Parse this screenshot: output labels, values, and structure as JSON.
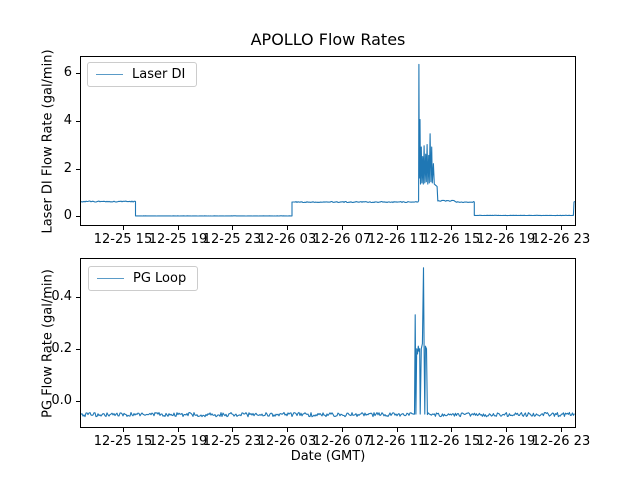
{
  "figure": {
    "title": "APOLLO Flow Rates",
    "xlabel": "Date (GMT)",
    "background": "#ffffff",
    "line_color": "#1f77b4"
  },
  "chart_data": [
    {
      "type": "line",
      "name": "laser-di",
      "title": "APOLLO Flow Rates",
      "ylabel": "Laser DI Flow Rate (gal/min)",
      "legend": "Laser DI",
      "legend_position": "upper-left",
      "color": "#1f77b4",
      "grid": false,
      "x_unit": "hours since 12-25 00:00 GMT",
      "xlim": [
        11.95,
        48.02
      ],
      "ylim": [
        -0.36,
        6.66
      ],
      "xticks": {
        "hours": [
          15,
          19,
          23,
          27,
          31,
          35,
          39,
          43,
          47
        ],
        "labels": [
          "12-25 15",
          "12-25 19",
          "12-25 23",
          "12-26 03",
          "12-26 07",
          "12-26 11",
          "12-26 15",
          "12-26 19",
          "12-26 23"
        ]
      },
      "yticks": {
        "values": [
          0,
          2,
          4,
          6
        ],
        "labels": [
          "0",
          "2",
          "4",
          "6"
        ]
      },
      "segments": [
        {
          "type": "flat",
          "x0": 11.95,
          "x1": 15.93,
          "y": 0.62,
          "noise": 0.02
        },
        {
          "type": "path",
          "points": [
            [
              15.93,
              0.62
            ],
            [
              15.93,
              0.02
            ]
          ]
        },
        {
          "type": "flat",
          "x0": 15.93,
          "x1": 27.36,
          "y": 0.02,
          "noise": 0.003
        },
        {
          "type": "path",
          "points": [
            [
              27.36,
              0.02
            ],
            [
              27.36,
              0.6
            ]
          ]
        },
        {
          "type": "flat",
          "x0": 27.36,
          "x1": 36.55,
          "y": 0.6,
          "noise": 0.02
        },
        {
          "type": "path",
          "points": [
            [
              36.55,
              0.6
            ],
            [
              36.6,
              0.65
            ],
            [
              36.62,
              6.35
            ],
            [
              36.65,
              1.6
            ],
            [
              36.7,
              4.05
            ],
            [
              36.74,
              1.35
            ],
            [
              36.8,
              2.9
            ],
            [
              36.84,
              1.4
            ],
            [
              36.9,
              2.5
            ],
            [
              36.94,
              1.35
            ],
            [
              37.0,
              2.95
            ],
            [
              37.05,
              1.4
            ],
            [
              37.12,
              2.6
            ],
            [
              37.16,
              1.45
            ],
            [
              37.22,
              3.0
            ],
            [
              37.27,
              1.35
            ],
            [
              37.34,
              2.55
            ],
            [
              37.38,
              1.4
            ],
            [
              37.44,
              3.45
            ],
            [
              37.5,
              1.45
            ],
            [
              37.56,
              2.9
            ],
            [
              37.6,
              1.4
            ],
            [
              37.68,
              2.2
            ],
            [
              37.75,
              1.35
            ],
            [
              37.85,
              1.3
            ],
            [
              37.95,
              1.25
            ],
            [
              38.0,
              0.65
            ]
          ]
        },
        {
          "type": "flat",
          "x0": 38.0,
          "x1": 39.3,
          "y": 0.65,
          "noise": 0.02
        },
        {
          "type": "flat",
          "x0": 39.3,
          "x1": 40.67,
          "y": 0.6,
          "noise": 0.02
        },
        {
          "type": "path",
          "points": [
            [
              40.67,
              0.6
            ],
            [
              40.67,
              0.04
            ]
          ]
        },
        {
          "type": "flat",
          "x0": 40.67,
          "x1": 47.9,
          "y": 0.04,
          "noise": 0.006
        },
        {
          "type": "path",
          "points": [
            [
              47.9,
              0.04
            ],
            [
              47.95,
              0.6
            ],
            [
              48.02,
              0.62
            ]
          ]
        }
      ]
    },
    {
      "type": "line",
      "name": "pg-loop",
      "ylabel": "PG Flow Rate (gal/min)",
      "xlabel": "Date (GMT)",
      "legend": "PG Loop",
      "legend_position": "upper-left",
      "color": "#1f77b4",
      "grid": false,
      "x_unit": "hours since 12-25 00:00 GMT",
      "xlim": [
        11.95,
        48.02
      ],
      "ylim": [
        -0.0995,
        0.5438
      ],
      "xticks": {
        "hours": [
          15,
          19,
          23,
          27,
          31,
          35,
          39,
          43,
          47
        ],
        "labels": [
          "12-25 15",
          "12-25 19",
          "12-25 23",
          "12-26 03",
          "12-26 07",
          "12-26 11",
          "12-26 15",
          "12-26 19",
          "12-26 23"
        ]
      },
      "yticks": {
        "values": [
          0,
          0.2,
          0.4
        ],
        "labels": [
          "0.0",
          "0.2",
          "0.4"
        ]
      },
      "segments": [
        {
          "type": "flat",
          "x0": 11.95,
          "x1": 36.3,
          "y": -0.052,
          "noise": 0.008
        },
        {
          "type": "path",
          "points": [
            [
              36.3,
              -0.05
            ],
            [
              36.35,
              0.33
            ],
            [
              36.4,
              -0.05
            ],
            [
              36.46,
              0.2
            ],
            [
              36.52,
              0.18
            ],
            [
              36.58,
              0.21
            ],
            [
              36.64,
              0.19
            ],
            [
              36.68,
              0.2
            ],
            [
              36.72,
              -0.05
            ],
            [
              36.8,
              0.2
            ],
            [
              36.88,
              0.22
            ],
            [
              36.96,
              0.51
            ],
            [
              37.0,
              0.2
            ],
            [
              37.05,
              -0.05
            ],
            [
              37.1,
              0.21
            ],
            [
              37.18,
              0.2
            ],
            [
              37.24,
              -0.052
            ]
          ]
        },
        {
          "type": "flat",
          "x0": 37.24,
          "x1": 48.02,
          "y": -0.052,
          "noise": 0.008
        }
      ]
    }
  ]
}
